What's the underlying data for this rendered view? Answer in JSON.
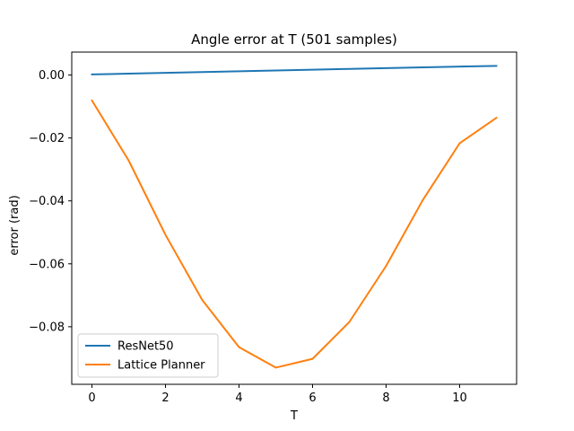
{
  "chart_data": {
    "type": "line",
    "title": "Angle error at T (501 samples)",
    "xlabel": "T",
    "ylabel": "error (rad)",
    "x": [
      0,
      1,
      2,
      3,
      4,
      5,
      6,
      7,
      8,
      9,
      10,
      11
    ],
    "xlim": [
      -0.55,
      11.55
    ],
    "ylim": [
      -0.0983,
      0.0073
    ],
    "xticks": [
      0,
      2,
      4,
      6,
      8,
      10
    ],
    "yticks": [
      0.0,
      -0.02,
      -0.04,
      -0.06,
      -0.08
    ],
    "ytick_labels": [
      "0.00",
      "−0.02",
      "−0.04",
      "−0.06",
      "−0.08"
    ],
    "grid": false,
    "legend_position": "lower-left",
    "series": [
      {
        "name": "ResNet50",
        "color": "#1f77b4",
        "values": [
          0.0002,
          0.00045,
          0.0007,
          0.00095,
          0.0012,
          0.00145,
          0.0017,
          0.00195,
          0.0022,
          0.00245,
          0.0027,
          0.0029
        ]
      },
      {
        "name": "Lattice Planner",
        "color": "#ff7f0e",
        "values": [
          -0.0081,
          -0.0272,
          -0.0508,
          -0.0715,
          -0.0865,
          -0.093,
          -0.0902,
          -0.0785,
          -0.0607,
          -0.0397,
          -0.0217,
          -0.0136
        ]
      }
    ]
  }
}
